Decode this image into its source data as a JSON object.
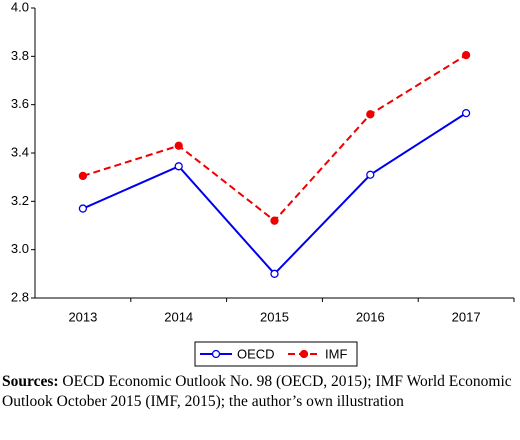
{
  "chart_data": {
    "type": "line",
    "categories": [
      "2013",
      "2014",
      "2015",
      "2016",
      "2017"
    ],
    "series": [
      {
        "name": "OECD",
        "color": "#0000ee",
        "dash": false,
        "marker": "hollow",
        "values": [
          3.17,
          3.345,
          2.9,
          3.31,
          3.565
        ]
      },
      {
        "name": "IMF",
        "color": "#ee0000",
        "dash": true,
        "marker": "filled",
        "values": [
          3.305,
          3.43,
          3.12,
          3.56,
          3.805
        ]
      }
    ],
    "ylim": [
      2.8,
      4.0
    ],
    "yticks": [
      2.8,
      {
        "value": 3,
        "label": "3.0"
      },
      3.2,
      3.4,
      3.6,
      3.8,
      {
        "value": 4,
        "label": "4.0"
      }
    ],
    "grid": false
  },
  "caption": {
    "label": "Sources:",
    "text": "OECD Economic Outlook No. 98 (OECD, 2015); IMF World Economic Outlook October 2015 (IMF, 2015); the author’s own illustration"
  }
}
